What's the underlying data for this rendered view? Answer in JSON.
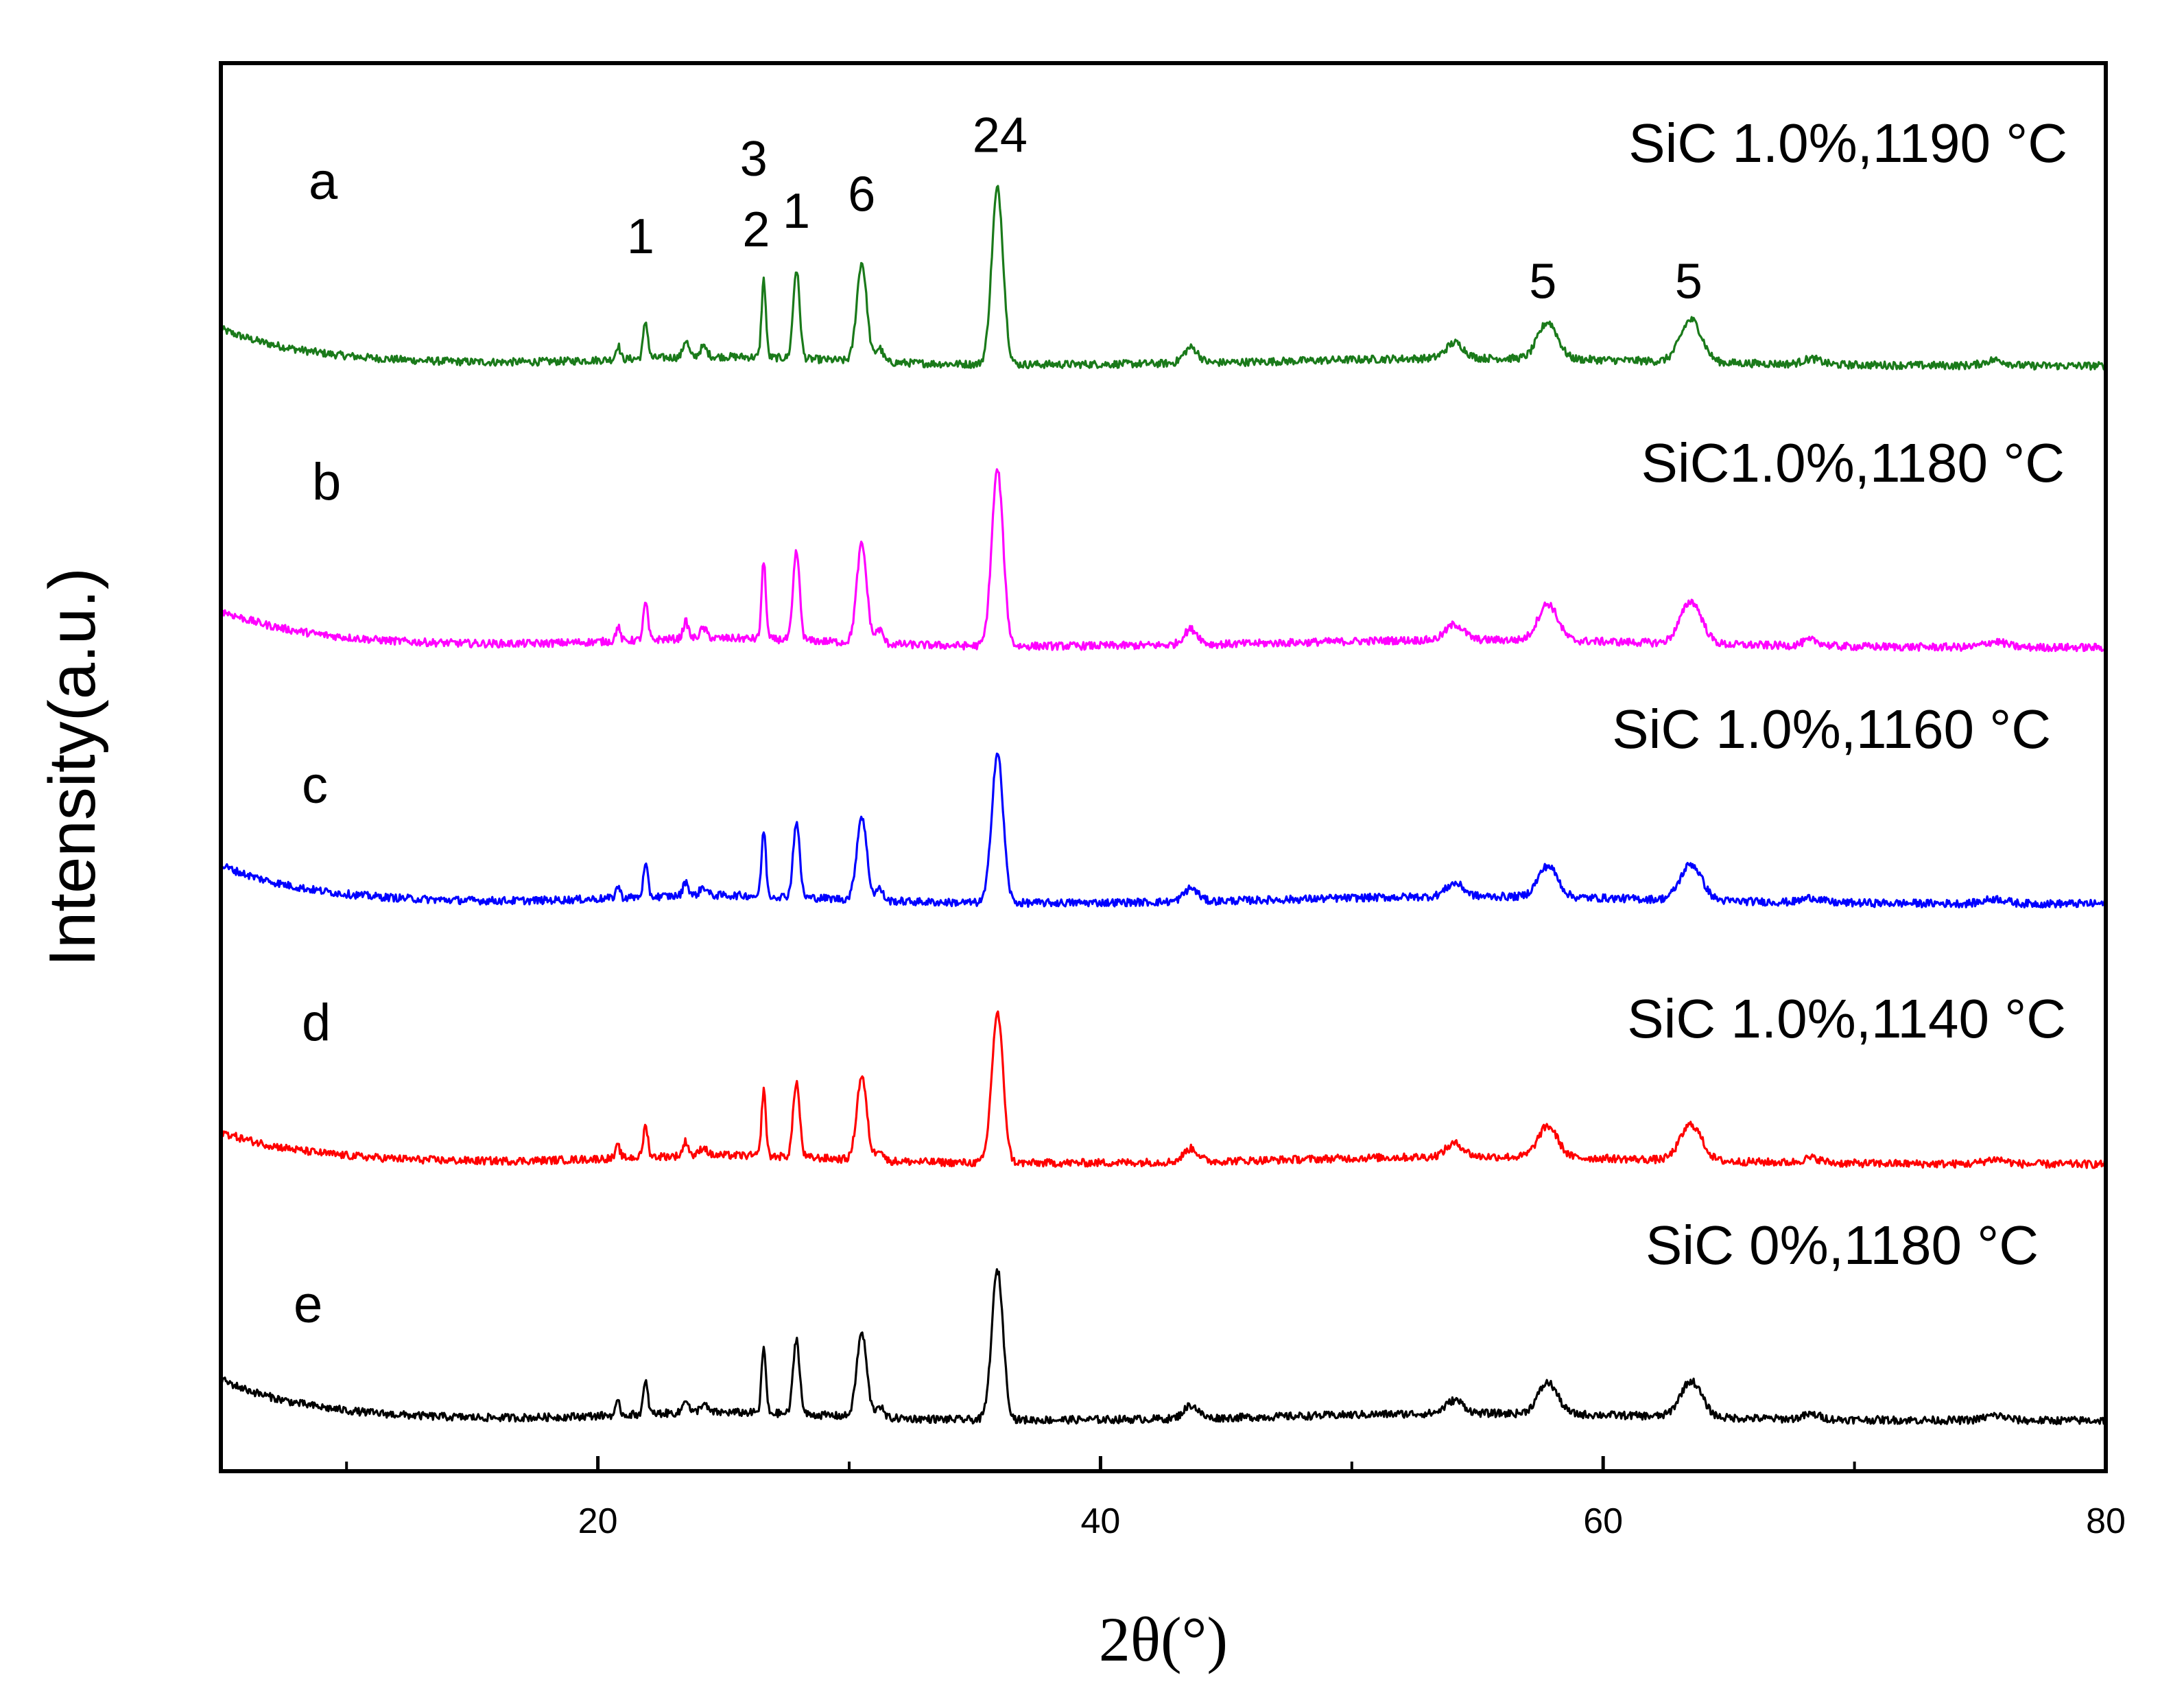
{
  "chart_data": {
    "type": "line",
    "title": "",
    "xlabel": "2θ(°)",
    "ylabel": "Intensity(a.u.)",
    "xlim": [
      5,
      80
    ],
    "ylim": [
      0,
      100
    ],
    "x_ticks": [
      20,
      40,
      60,
      80
    ],
    "x_minor_ticks": [
      10,
      30,
      50,
      70
    ],
    "yticks_shown": false,
    "grid": false,
    "legend": "inline labels on the right of each trace",
    "series": [
      {
        "letter": "a",
        "name": "SiC 1.0%,1190 °C",
        "color": "#1a7a1a",
        "baseline": 79,
        "start": 81,
        "end": 78.5,
        "scale": 1.0
      },
      {
        "letter": "b",
        "name": "SiC1.0%,1180 °C",
        "color": "#ff00ff",
        "baseline": 59,
        "start": 61,
        "end": 58.5,
        "scale": 1.0
      },
      {
        "letter": "c",
        "name": "SiC 1.0%,1160 °C",
        "color": "#0000ff",
        "baseline": 40.5,
        "start": 43,
        "end": 40.3,
        "scale": 0.85
      },
      {
        "letter": "d",
        "name": "SiC 1.0%,1140 °C",
        "color": "#ff0000",
        "baseline": 22.2,
        "start": 24,
        "end": 21.8,
        "scale": 0.85
      },
      {
        "letter": "e",
        "name": "SiC 0%,1180 °C",
        "color": "#000000",
        "baseline": 3.7,
        "start": 6.5,
        "end": 3.6,
        "scale": 0.85
      }
    ],
    "peaks": [
      {
        "x": 20.8,
        "h": 1.0,
        "w": 0.12
      },
      {
        "x": 21.9,
        "h": 2.6,
        "w": 0.13
      },
      {
        "x": 23.5,
        "h": 1.2,
        "w": 0.15
      },
      {
        "x": 24.2,
        "h": 0.7,
        "w": 0.2
      },
      {
        "x": 26.6,
        "h": 5.5,
        "w": 0.12
      },
      {
        "x": 27.9,
        "h": 6.3,
        "w": 0.18
      },
      {
        "x": 30.5,
        "h": 7.0,
        "w": 0.28
      },
      {
        "x": 31.2,
        "h": 1.0,
        "w": 0.2
      },
      {
        "x": 35.9,
        "h": 12.5,
        "w": 0.32
      },
      {
        "x": 43.6,
        "h": 1.1,
        "w": 0.4
      },
      {
        "x": 54.1,
        "h": 1.1,
        "w": 0.5
      },
      {
        "x": 57.8,
        "h": 2.6,
        "w": 0.55
      },
      {
        "x": 63.5,
        "h": 3.0,
        "w": 0.6
      },
      {
        "x": 68.3,
        "h": 0.4,
        "w": 0.5
      },
      {
        "x": 75.6,
        "h": 0.4,
        "w": 0.6
      }
    ],
    "peak_annotations": [
      {
        "text": "1",
        "x": 21.7,
        "y": 86.5
      },
      {
        "text": "3",
        "x": 26.2,
        "y": 92
      },
      {
        "text": "2",
        "x": 26.3,
        "y": 87
      },
      {
        "text": "1",
        "x": 27.9,
        "y": 88.3
      },
      {
        "text": "6",
        "x": 30.5,
        "y": 89.5
      },
      {
        "text": "24",
        "x": 36.0,
        "y": 93.7
      },
      {
        "text": "5",
        "x": 57.6,
        "y": 83.3
      },
      {
        "text": "5",
        "x": 63.4,
        "y": 83.3
      }
    ]
  }
}
